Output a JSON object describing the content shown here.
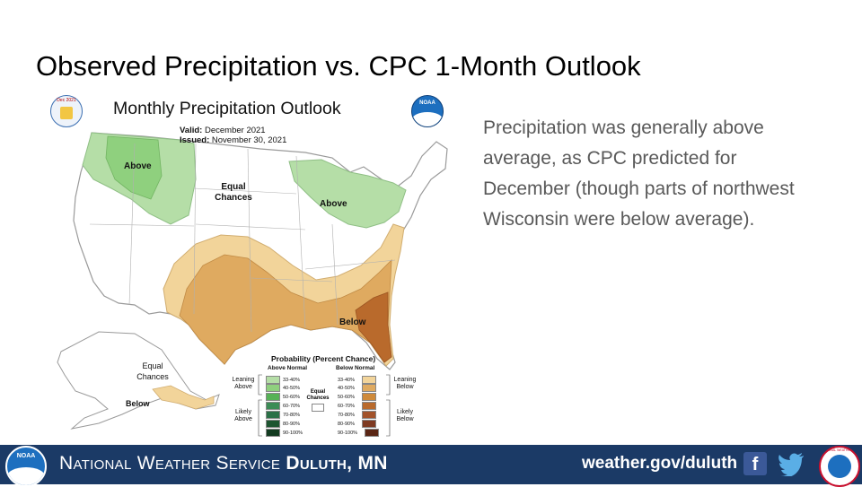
{
  "slide": {
    "title": "Observed Precipitation vs. CPC 1-Month Outlook",
    "summary": "Precipitation was generally above average, as CPC predicted for December (though parts of northwest Wisconsin were below average)."
  },
  "map": {
    "title": "Monthly Precipitation Outlook",
    "valid_label": "Valid:",
    "valid_value": "December 2021",
    "issued_label": "Issued:",
    "issued_value": "November 30, 2021",
    "doc_badge": "Dec 2021",
    "noaa_logo_text": "NOAA",
    "regions": {
      "above_northwest": "Above",
      "above_great_lakes": "Above",
      "equal_chances_main": "Equal Chances",
      "below_southeast": "Below",
      "equal_chances_alaska": "Equal Chances",
      "below_alaska": "Below"
    },
    "legend": {
      "title": "Probability (Percent Chance)",
      "above_header": "Above Normal",
      "below_header": "Below Normal",
      "equal_chances": "Equal Chances",
      "leaning_above": "Leaning Above",
      "likely_above": "Likely Above",
      "leaning_below": "Leaning Below",
      "likely_below": "Likely Below",
      "above_bins": [
        {
          "label": "33-40%",
          "color": "#b5dea7"
        },
        {
          "label": "40-50%",
          "color": "#8fd07e"
        },
        {
          "label": "50-60%",
          "color": "#57b256"
        },
        {
          "label": "60-70%",
          "color": "#3c8c56"
        },
        {
          "label": "70-80%",
          "color": "#2a7046"
        },
        {
          "label": "80-90%",
          "color": "#1d5530"
        },
        {
          "label": "90-100%",
          "color": "#123b20"
        }
      ],
      "below_bins": [
        {
          "label": "33-40%",
          "color": "#f2d49a"
        },
        {
          "label": "40-50%",
          "color": "#dfaa60"
        },
        {
          "label": "50-60%",
          "color": "#cf8a3a"
        },
        {
          "label": "60-70%",
          "color": "#b96a2c"
        },
        {
          "label": "70-80%",
          "color": "#a2522a"
        },
        {
          "label": "80-90%",
          "color": "#7e3a22"
        },
        {
          "label": "90-100%",
          "color": "#5a2615"
        }
      ]
    }
  },
  "footer": {
    "org_name": "National Weather Service",
    "office": "Duluth, MN",
    "url": "weather.gov/duluth",
    "noaa_logo_text": "NOAA",
    "nws_logo_text": "NATIONAL WEATHER SERVICE",
    "background": "#1b3a66"
  }
}
